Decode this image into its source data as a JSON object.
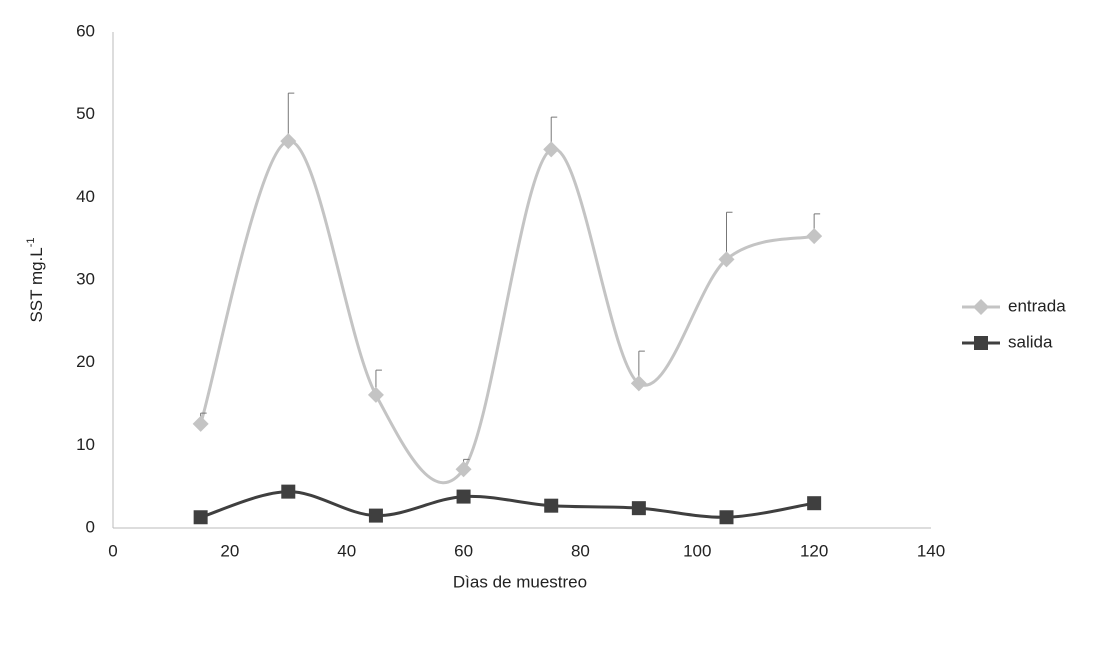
{
  "chart_data": {
    "type": "line",
    "x_label": "Dìas de muestreo",
    "y_label": {
      "text": "SST mg.L",
      "sup": "-1"
    },
    "x": [
      15,
      30,
      45,
      60,
      75,
      90,
      105,
      120
    ],
    "series": [
      {
        "name": "entrada",
        "color": "#c4c4c4",
        "marker": "diamond",
        "values": [
          12.6,
          46.8,
          16.1,
          7.1,
          45.8,
          17.5,
          32.5,
          35.3
        ],
        "errors": [
          1.3,
          5.8,
          3.0,
          1.2,
          3.9,
          3.9,
          5.7,
          2.7
        ]
      },
      {
        "name": "salida",
        "color": "#3f3f3f",
        "marker": "square",
        "values": [
          1.3,
          4.4,
          1.5,
          3.8,
          2.7,
          2.4,
          1.3,
          3.0
        ]
      }
    ],
    "xlim": [
      0,
      140
    ],
    "xticks": [
      0,
      20,
      40,
      60,
      80,
      100,
      120,
      140
    ],
    "ylim": [
      0,
      60
    ],
    "yticks": [
      0,
      10,
      20,
      30,
      40,
      50,
      60
    ],
    "grid": false,
    "smooth": true,
    "legend": "right"
  }
}
